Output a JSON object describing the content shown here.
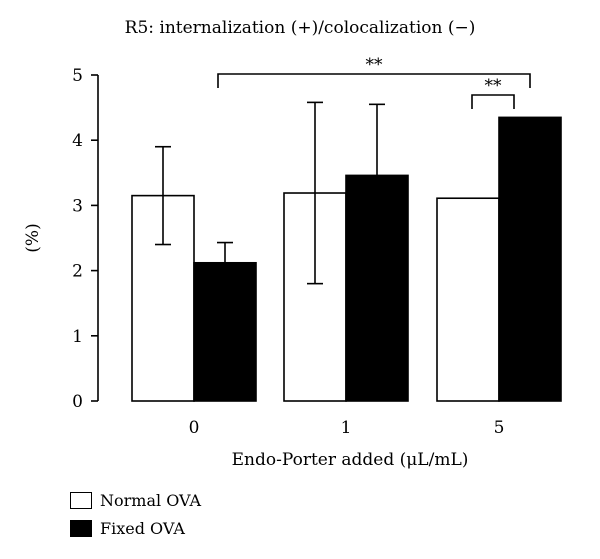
{
  "chart_data": {
    "type": "bar",
    "title": "R5: internalization (+)/colocalization (−)",
    "xlabel": "Endo-Porter added (μL/mL)",
    "ylabel": "(%)",
    "categories": [
      "0",
      "1",
      "5"
    ],
    "ylim": [
      0,
      5
    ],
    "yticks": [
      0,
      1,
      2,
      3,
      4,
      5
    ],
    "series": [
      {
        "name": "Normal OVA",
        "color": "#ffffff",
        "values": [
          3.15,
          3.19,
          3.11
        ],
        "error": [
          0.75,
          1.39,
          null
        ]
      },
      {
        "name": "Fixed OVA",
        "color": "#000000",
        "values": [
          2.12,
          3.46,
          4.35
        ],
        "error": [
          0.31,
          1.09,
          null
        ]
      }
    ],
    "significance": [
      {
        "label": "**",
        "from": "Fixed OVA @ 0",
        "to": "Fixed OVA @ 5"
      },
      {
        "label": "**",
        "from": "Normal OVA @ 5",
        "to": "Fixed OVA @ 5"
      }
    ],
    "legend_position": "bottom-left"
  }
}
